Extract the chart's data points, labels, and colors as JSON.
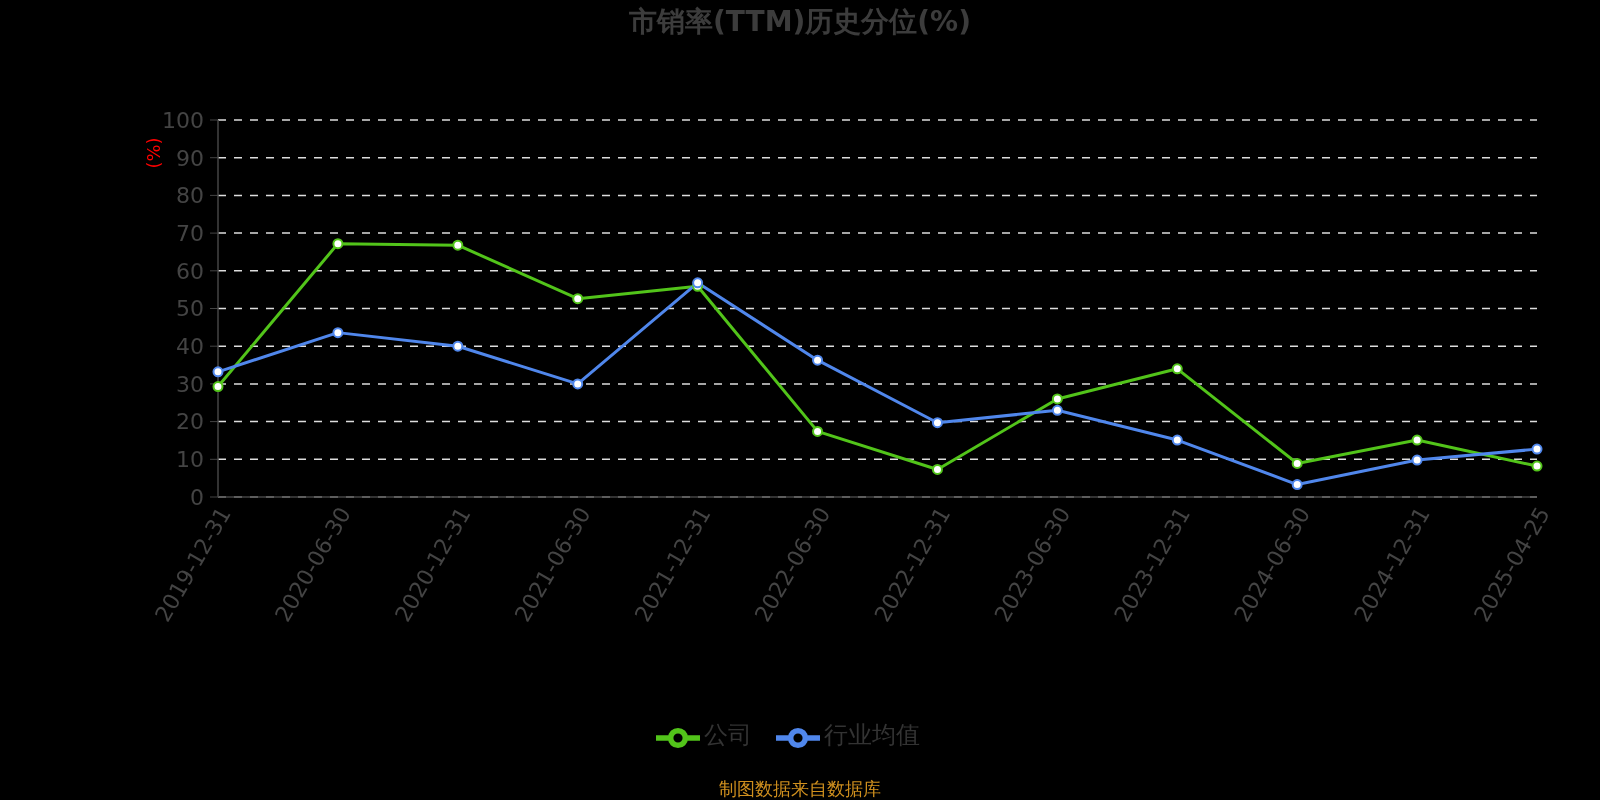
{
  "chart_data": {
    "type": "line",
    "title": "市销率(TTM)历史分位(%)",
    "ylabel": "(%)",
    "categories": [
      "2019-12-31",
      "2020-06-30",
      "2020-12-31",
      "2021-06-30",
      "2021-12-31",
      "2022-06-30",
      "2022-12-31",
      "2023-06-30",
      "2023-12-31",
      "2024-06-30",
      "2024-12-31",
      "2025-04-25"
    ],
    "series": [
      {
        "name": "公司",
        "color": "#52c41a",
        "values": [
          29.3,
          67.2,
          66.8,
          52.6,
          55.9,
          17.4,
          7.3,
          26.0,
          34.0,
          8.9,
          15.1,
          8.2
        ]
      },
      {
        "name": "行业均值",
        "color": "#5087ec",
        "values": [
          33.2,
          43.6,
          40.0,
          30.0,
          56.8,
          36.3,
          19.7,
          23.0,
          15.1,
          3.3,
          9.8,
          12.7
        ]
      }
    ],
    "ylim": [
      0,
      100
    ],
    "yticks": [
      0,
      10,
      20,
      30,
      40,
      50,
      60,
      70,
      80,
      90,
      100
    ],
    "grid": "y",
    "legend": "bottom",
    "marker": "circle",
    "line_style": "solid",
    "annotations": [
      "制图数据来自数据库"
    ]
  }
}
